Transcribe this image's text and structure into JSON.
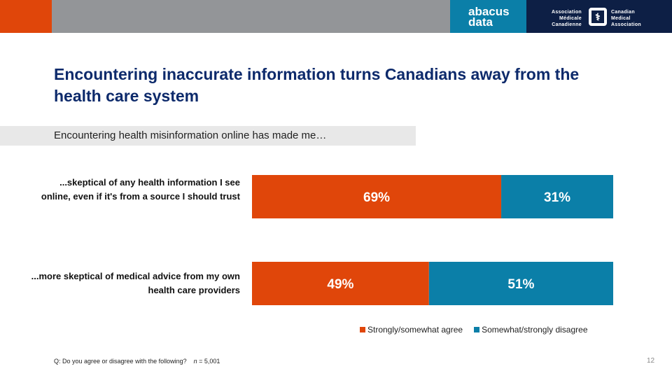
{
  "header": {
    "logo_abacus": "abacus data",
    "logo_cma_left": [
      "Association",
      "Médicale",
      "Canadienne"
    ],
    "logo_cma_right": [
      "Canadian",
      "Medical",
      "Association"
    ]
  },
  "title": "Encountering inaccurate information turns Canadians away from the health care system",
  "subtitle": "Encountering health misinformation online has made me…",
  "chart_data": {
    "type": "bar",
    "orientation": "horizontal",
    "stacked": true,
    "categories": [
      "...skeptical of any health information I see online, even if it's from a source I should trust",
      "...more skeptical of medical advice from my own health care providers"
    ],
    "series": [
      {
        "name": "Strongly/somewhat agree",
        "values": [
          69,
          49
        ],
        "labels": [
          "69%",
          "49%"
        ],
        "color": "#e0460a"
      },
      {
        "name": "Somewhat/strongly disagree",
        "values": [
          31,
          51
        ],
        "labels": [
          "31%",
          "51%"
        ],
        "color": "#0b7fa8"
      }
    ],
    "xlim": [
      0,
      100
    ],
    "legend": "bottom-right"
  },
  "footer": {
    "question": "Q: Do you agree or disagree with the following?",
    "n_label": "n",
    "n_value": " = 5,001",
    "page": "12"
  }
}
